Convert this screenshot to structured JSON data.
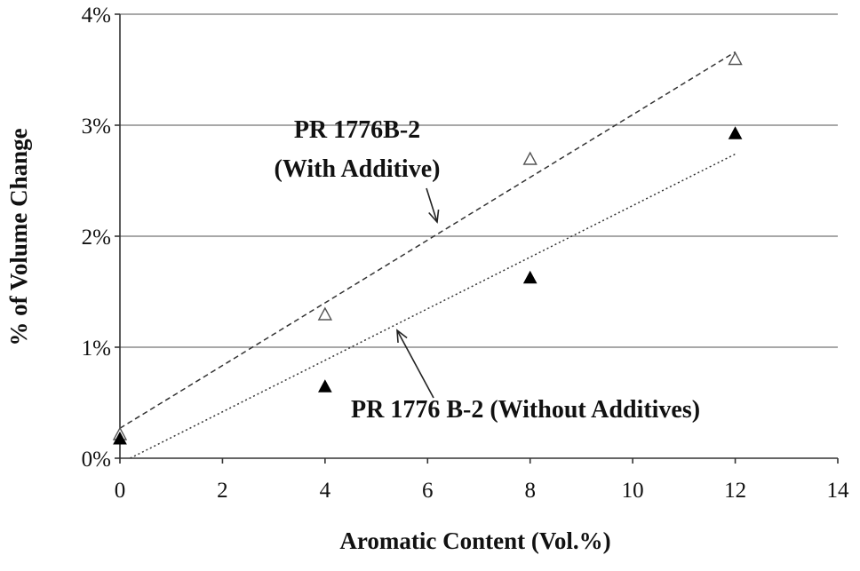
{
  "chart_data": {
    "type": "scatter",
    "xlabel": "Aromatic Content (Vol.%)",
    "ylabel": "% of Volume Change",
    "xlim": [
      0,
      14
    ],
    "ylim": [
      0,
      4
    ],
    "x_ticks": [
      "0",
      "2",
      "4",
      "6",
      "8",
      "10",
      "12",
      "14"
    ],
    "y_ticks": [
      "0%",
      "1%",
      "2%",
      "3%",
      "4%"
    ],
    "grid": "horizontal",
    "series": [
      {
        "name": "PR 1776B-2 (With Additive)",
        "marker": "open-triangle",
        "color": "#333333",
        "points": [
          [
            0,
            0.22
          ],
          [
            4,
            1.3
          ],
          [
            8,
            2.7
          ],
          [
            12,
            3.6
          ]
        ],
        "trendline": {
          "style": "dashed",
          "from": [
            0,
            0.27
          ],
          "to": [
            12,
            3.66
          ]
        }
      },
      {
        "name": "PR 1776 B-2 (Without Additives)",
        "marker": "filled-triangle",
        "color": "#000000",
        "points": [
          [
            0,
            0.18
          ],
          [
            4,
            0.65
          ],
          [
            8,
            1.63
          ],
          [
            12,
            2.93
          ]
        ],
        "trendline": {
          "style": "dotted",
          "from": [
            0.2,
            0.0
          ],
          "to": [
            12,
            2.74
          ]
        }
      }
    ],
    "annotations": [
      {
        "lines": [
          "PR 1776B-2",
          "(With Additive)"
        ]
      },
      {
        "lines": [
          "PR 1776 B-2 (Without Additives)"
        ]
      }
    ]
  }
}
